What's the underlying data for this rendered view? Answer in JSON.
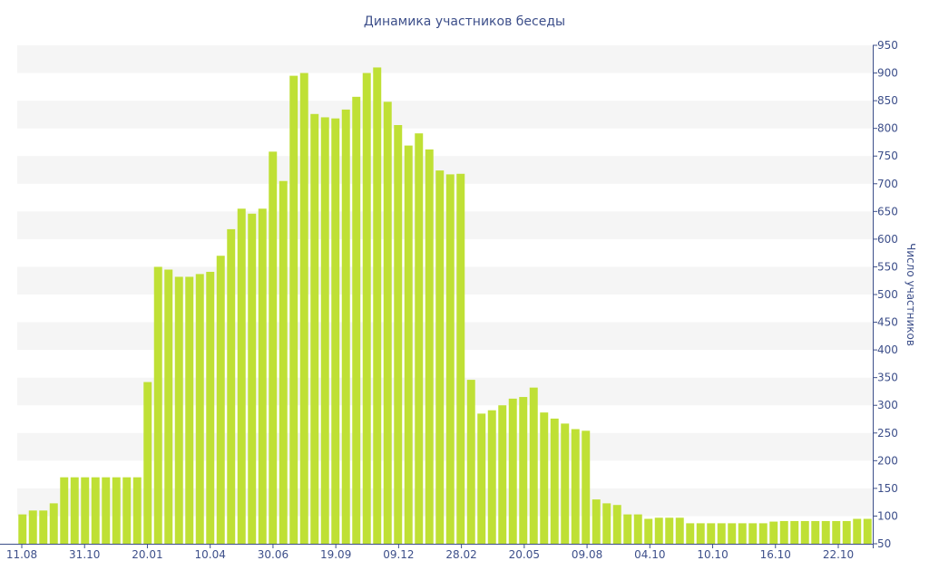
{
  "chart_data": {
    "type": "bar",
    "title": "Динамика участников беседы",
    "ylabel": "Число участников",
    "xlabel": "",
    "ylim": [
      50,
      950
    ],
    "y_ticks": [
      50,
      100,
      150,
      200,
      250,
      300,
      350,
      400,
      450,
      500,
      550,
      600,
      650,
      700,
      750,
      800,
      850,
      900,
      950
    ],
    "y_axis_position": "right",
    "x_tick_labels": [
      "11.08",
      "31.10",
      "20.01",
      "10.04",
      "30.06",
      "19.09",
      "09.12",
      "28.02",
      "20.05",
      "09.08",
      "04.10",
      "10.10",
      "16.10",
      "22.10"
    ],
    "grid": "horizontal bands",
    "colors": {
      "bar": "#bfe035",
      "text": "#3d4f8a",
      "band": "#f5f5f5",
      "axis": "#3d4f8a"
    },
    "values": [
      103,
      110,
      110,
      123,
      170,
      170,
      170,
      170,
      170,
      170,
      170,
      170,
      342,
      550,
      545,
      532,
      532,
      537,
      541,
      570,
      618,
      655,
      646,
      655,
      758,
      705,
      895,
      900,
      826,
      820,
      818,
      834,
      857,
      900,
      910,
      848,
      806,
      769,
      791,
      762,
      724,
      717,
      718,
      346,
      285,
      291,
      300,
      312,
      315,
      332,
      287,
      276,
      267,
      257,
      254,
      130,
      123,
      120,
      103,
      103,
      95,
      97,
      97,
      97,
      87,
      87,
      87,
      87,
      87,
      87,
      87,
      87,
      90,
      91,
      91,
      91,
      91,
      91,
      91,
      91,
      95,
      95
    ]
  }
}
